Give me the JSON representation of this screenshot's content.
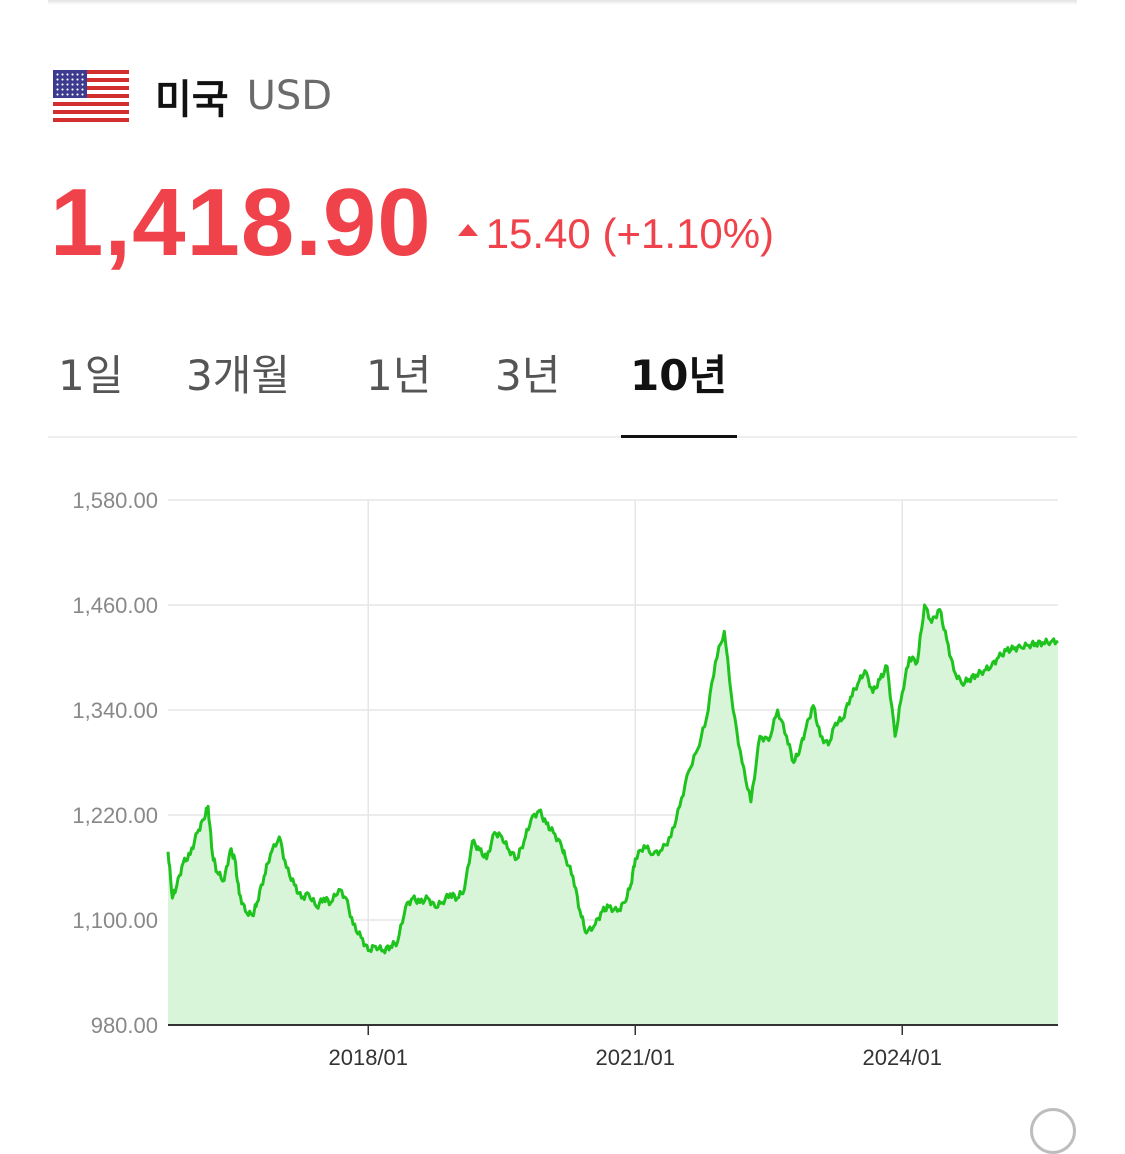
{
  "header": {
    "flag_icon": "us-flag-icon",
    "country": "미국",
    "currency": "USD"
  },
  "quote": {
    "price": "1,418.90",
    "change": "15.40 (+1.10%)",
    "direction": "up",
    "color": "#f0424a"
  },
  "tabs": [
    {
      "label": "1일",
      "active": false
    },
    {
      "label": "3개월",
      "active": false
    },
    {
      "label": "1년",
      "active": false
    },
    {
      "label": "3년",
      "active": false
    },
    {
      "label": "10년",
      "active": true
    }
  ],
  "chart_data": {
    "type": "area",
    "line_color": "#1ec31e",
    "fill_color": "#d9f5d9",
    "ylim": [
      980,
      1580
    ],
    "yticks": [
      "1,580.00",
      "1,460.00",
      "1,340.00",
      "1,220.00",
      "1,100.00",
      "980.00"
    ],
    "ytick_values": [
      1580,
      1460,
      1340,
      1220,
      1100,
      980
    ],
    "xticks": [
      "2018/01",
      "2021/01",
      "2024/01"
    ],
    "xtick_values": [
      2018.0,
      2021.0,
      2024.0
    ],
    "xlim": [
      2015.75,
      2025.75
    ],
    "grid": true,
    "series": [
      {
        "x": [
          2015.75,
          2015.8,
          2015.85,
          2015.92,
          2016.0,
          2016.08,
          2016.15,
          2016.2,
          2016.25,
          2016.3,
          2016.38,
          2016.45,
          2016.5,
          2016.55,
          2016.62,
          2016.7,
          2016.75,
          2016.83,
          2016.9,
          2017.0,
          2017.08,
          2017.17,
          2017.25,
          2017.33,
          2017.42,
          2017.5,
          2017.58,
          2017.67,
          2017.75,
          2017.83,
          2017.92,
          2018.0,
          2018.08,
          2018.17,
          2018.25,
          2018.33,
          2018.42,
          2018.5,
          2018.58,
          2018.67,
          2018.75,
          2018.83,
          2018.92,
          2019.0,
          2019.08,
          2019.17,
          2019.25,
          2019.33,
          2019.42,
          2019.5,
          2019.58,
          2019.67,
          2019.75,
          2019.83,
          2019.92,
          2020.0,
          2020.08,
          2020.17,
          2020.22,
          2020.3,
          2020.38,
          2020.45,
          2020.55,
          2020.63,
          2020.7,
          2020.8,
          2020.88,
          2020.95,
          2021.0,
          2021.1,
          2021.2,
          2021.3,
          2021.4,
          2021.5,
          2021.6,
          2021.7,
          2021.8,
          2021.9,
          2022.0,
          2022.1,
          2022.2,
          2022.3,
          2022.4,
          2022.5,
          2022.6,
          2022.7,
          2022.78,
          2022.85,
          2022.92,
          2023.0,
          2023.08,
          2023.17,
          2023.25,
          2023.33,
          2023.42,
          2023.5,
          2023.58,
          2023.67,
          2023.75,
          2023.83,
          2023.92,
          2024.0,
          2024.08,
          2024.17,
          2024.25,
          2024.33,
          2024.42,
          2024.5,
          2024.58,
          2024.67,
          2024.75,
          2024.83,
          2024.92,
          2025.0,
          2025.08,
          2025.17,
          2025.25,
          2025.33,
          2025.42,
          2025.5,
          2025.58,
          2025.67,
          2025.75
        ],
        "y": [
          1178,
          1125,
          1140,
          1165,
          1175,
          1200,
          1215,
          1230,
          1175,
          1155,
          1145,
          1180,
          1170,
          1130,
          1110,
          1105,
          1120,
          1150,
          1175,
          1195,
          1160,
          1140,
          1125,
          1130,
          1115,
          1125,
          1120,
          1135,
          1125,
          1095,
          1080,
          1065,
          1070,
          1065,
          1070,
          1075,
          1115,
          1125,
          1120,
          1125,
          1115,
          1120,
          1130,
          1125,
          1135,
          1190,
          1180,
          1170,
          1200,
          1195,
          1180,
          1170,
          1190,
          1215,
          1225,
          1210,
          1200,
          1185,
          1170,
          1150,
          1110,
          1085,
          1095,
          1110,
          1115,
          1110,
          1120,
          1140,
          1170,
          1185,
          1175,
          1180,
          1195,
          1230,
          1270,
          1295,
          1330,
          1395,
          1430,
          1340,
          1280,
          1235,
          1310,
          1305,
          1340,
          1310,
          1280,
          1295,
          1320,
          1345,
          1310,
          1300,
          1325,
          1330,
          1355,
          1370,
          1385,
          1360,
          1375,
          1390,
          1310,
          1360,
          1400,
          1395,
          1460,
          1440,
          1455,
          1420,
          1385,
          1370,
          1375,
          1380,
          1385,
          1390,
          1400,
          1408,
          1410,
          1412,
          1414,
          1416,
          1417,
          1418,
          1418.9
        ]
      }
    ]
  }
}
